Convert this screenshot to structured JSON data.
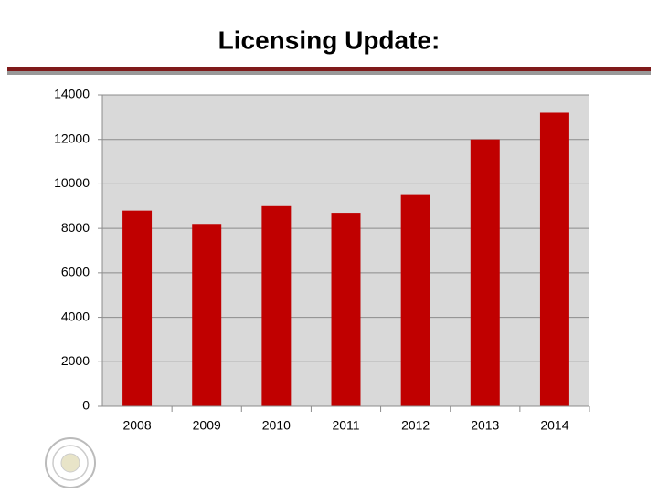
{
  "chart_data": {
    "type": "bar",
    "title": "Licensing Update:",
    "categories": [
      "2008",
      "2009",
      "2010",
      "2011",
      "2012",
      "2013",
      "2014"
    ],
    "values": [
      8800,
      8200,
      9000,
      8700,
      9500,
      12000,
      13200
    ],
    "color": "#c00000",
    "ylim": [
      0,
      14000
    ],
    "yticks": [
      0,
      2000,
      4000,
      6000,
      8000,
      10000,
      12000,
      14000
    ],
    "grid": true
  }
}
